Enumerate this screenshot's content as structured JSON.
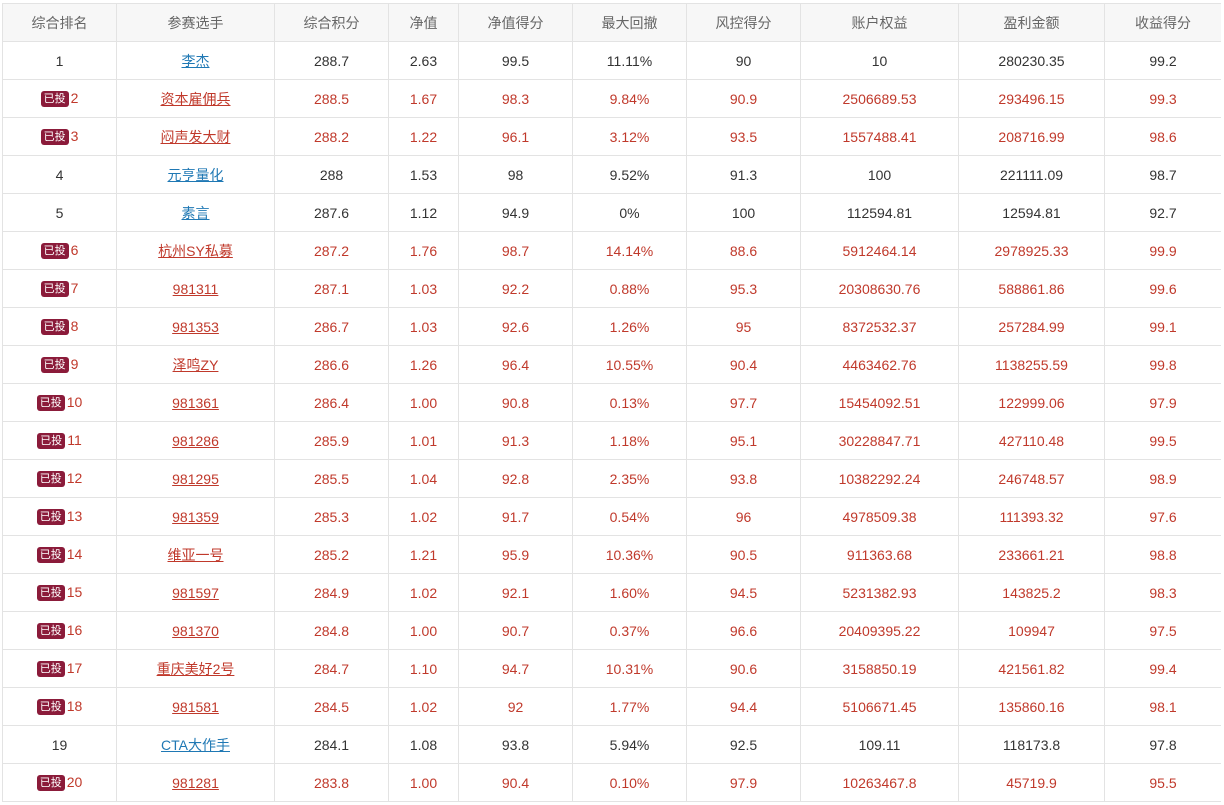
{
  "table": {
    "columns": [
      "综合排名",
      "参赛选手",
      "综合积分",
      "净值",
      "净值得分",
      "最大回撤",
      "风控得分",
      "账户权益",
      "盈利金额",
      "收益得分"
    ],
    "badge_label": "已投",
    "rows": [
      {
        "rank": "1",
        "invested": false,
        "player": "李杰",
        "score": "288.7",
        "nav": "2.63",
        "nav_score": "99.5",
        "max_drawdown": "11.11%",
        "risk_score": "90",
        "equity": "10",
        "profit": "280230.35",
        "return_score": "99.2"
      },
      {
        "rank": "2",
        "invested": true,
        "player": "资本雇佣兵",
        "score": "288.5",
        "nav": "1.67",
        "nav_score": "98.3",
        "max_drawdown": "9.84%",
        "risk_score": "90.9",
        "equity": "2506689.53",
        "profit": "293496.15",
        "return_score": "99.3"
      },
      {
        "rank": "3",
        "invested": true,
        "player": "闷声发大财",
        "score": "288.2",
        "nav": "1.22",
        "nav_score": "96.1",
        "max_drawdown": "3.12%",
        "risk_score": "93.5",
        "equity": "1557488.41",
        "profit": "208716.99",
        "return_score": "98.6"
      },
      {
        "rank": "4",
        "invested": false,
        "player": "元亨量化",
        "score": "288",
        "nav": "1.53",
        "nav_score": "98",
        "max_drawdown": "9.52%",
        "risk_score": "91.3",
        "equity": "100",
        "profit": "221111.09",
        "return_score": "98.7"
      },
      {
        "rank": "5",
        "invested": false,
        "player": "素言",
        "score": "287.6",
        "nav": "1.12",
        "nav_score": "94.9",
        "max_drawdown": "0%",
        "risk_score": "100",
        "equity": "112594.81",
        "profit": "12594.81",
        "return_score": "92.7"
      },
      {
        "rank": "6",
        "invested": true,
        "player": "杭州SY私募",
        "score": "287.2",
        "nav": "1.76",
        "nav_score": "98.7",
        "max_drawdown": "14.14%",
        "risk_score": "88.6",
        "equity": "5912464.14",
        "profit": "2978925.33",
        "return_score": "99.9"
      },
      {
        "rank": "7",
        "invested": true,
        "player": "981311",
        "score": "287.1",
        "nav": "1.03",
        "nav_score": "92.2",
        "max_drawdown": "0.88%",
        "risk_score": "95.3",
        "equity": "20308630.76",
        "profit": "588861.86",
        "return_score": "99.6"
      },
      {
        "rank": "8",
        "invested": true,
        "player": "981353",
        "score": "286.7",
        "nav": "1.03",
        "nav_score": "92.6",
        "max_drawdown": "1.26%",
        "risk_score": "95",
        "equity": "8372532.37",
        "profit": "257284.99",
        "return_score": "99.1"
      },
      {
        "rank": "9",
        "invested": true,
        "player": "泽鸣ZY",
        "score": "286.6",
        "nav": "1.26",
        "nav_score": "96.4",
        "max_drawdown": "10.55%",
        "risk_score": "90.4",
        "equity": "4463462.76",
        "profit": "1138255.59",
        "return_score": "99.8"
      },
      {
        "rank": "10",
        "invested": true,
        "player": "981361",
        "score": "286.4",
        "nav": "1.00",
        "nav_score": "90.8",
        "max_drawdown": "0.13%",
        "risk_score": "97.7",
        "equity": "15454092.51",
        "profit": "122999.06",
        "return_score": "97.9"
      },
      {
        "rank": "11",
        "invested": true,
        "player": "981286",
        "score": "285.9",
        "nav": "1.01",
        "nav_score": "91.3",
        "max_drawdown": "1.18%",
        "risk_score": "95.1",
        "equity": "30228847.71",
        "profit": "427110.48",
        "return_score": "99.5"
      },
      {
        "rank": "12",
        "invested": true,
        "player": "981295",
        "score": "285.5",
        "nav": "1.04",
        "nav_score": "92.8",
        "max_drawdown": "2.35%",
        "risk_score": "93.8",
        "equity": "10382292.24",
        "profit": "246748.57",
        "return_score": "98.9"
      },
      {
        "rank": "13",
        "invested": true,
        "player": "981359",
        "score": "285.3",
        "nav": "1.02",
        "nav_score": "91.7",
        "max_drawdown": "0.54%",
        "risk_score": "96",
        "equity": "4978509.38",
        "profit": "111393.32",
        "return_score": "97.6"
      },
      {
        "rank": "14",
        "invested": true,
        "player": "维亚一号",
        "score": "285.2",
        "nav": "1.21",
        "nav_score": "95.9",
        "max_drawdown": "10.36%",
        "risk_score": "90.5",
        "equity": "911363.68",
        "profit": "233661.21",
        "return_score": "98.8"
      },
      {
        "rank": "15",
        "invested": true,
        "player": "981597",
        "score": "284.9",
        "nav": "1.02",
        "nav_score": "92.1",
        "max_drawdown": "1.60%",
        "risk_score": "94.5",
        "equity": "5231382.93",
        "profit": "143825.2",
        "return_score": "98.3"
      },
      {
        "rank": "16",
        "invested": true,
        "player": "981370",
        "score": "284.8",
        "nav": "1.00",
        "nav_score": "90.7",
        "max_drawdown": "0.37%",
        "risk_score": "96.6",
        "equity": "20409395.22",
        "profit": "109947",
        "return_score": "97.5"
      },
      {
        "rank": "17",
        "invested": true,
        "player": "重庆美好2号",
        "score": "284.7",
        "nav": "1.10",
        "nav_score": "94.7",
        "max_drawdown": "10.31%",
        "risk_score": "90.6",
        "equity": "3158850.19",
        "profit": "421561.82",
        "return_score": "99.4"
      },
      {
        "rank": "18",
        "invested": true,
        "player": "981581",
        "score": "284.5",
        "nav": "1.02",
        "nav_score": "92",
        "max_drawdown": "1.77%",
        "risk_score": "94.4",
        "equity": "5106671.45",
        "profit": "135860.16",
        "return_score": "98.1"
      },
      {
        "rank": "19",
        "invested": false,
        "player": "CTA大作手",
        "score": "284.1",
        "nav": "1.08",
        "nav_score": "93.8",
        "max_drawdown": "5.94%",
        "risk_score": "92.5",
        "equity": "109.11",
        "profit": "118173.8",
        "return_score": "97.8"
      },
      {
        "rank": "20",
        "invested": true,
        "player": "981281",
        "score": "283.8",
        "nav": "1.00",
        "nav_score": "90.4",
        "max_drawdown": "0.10%",
        "risk_score": "97.9",
        "equity": "10263467.8",
        "profit": "45719.9",
        "return_score": "95.5"
      }
    ]
  },
  "colors": {
    "invested_text": "#c0392b",
    "normal_link": "#1f78b4",
    "badge_bg": "#8b1b3a",
    "header_bg": "#f7f7f7",
    "border": "#e3e3e3"
  }
}
